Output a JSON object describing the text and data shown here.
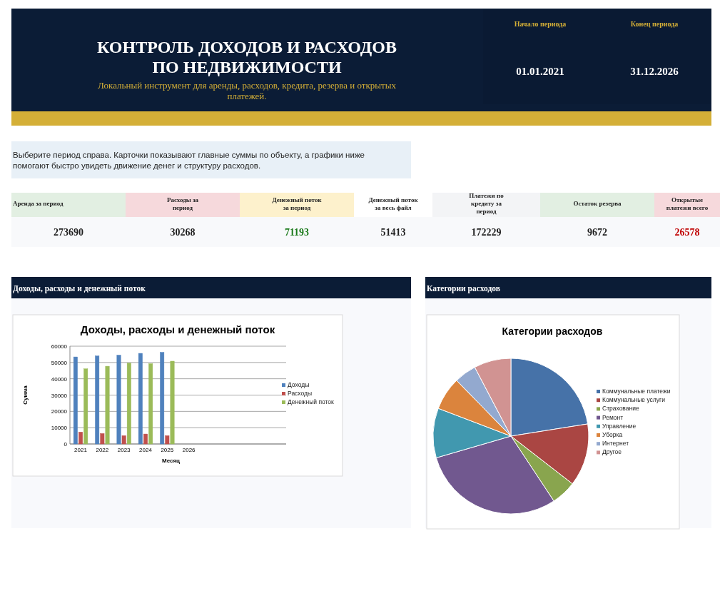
{
  "chart_data": [
    {
      "type": "other",
      "title": "КОНТРОЛЬ ДОХОДОВ И РАСХОДОВ ПО НЕДВИЖИМОСТИ",
      "subtitle": "Локальный инструмент для аренды, расходов, кредита, резерва и открытых платежей.",
      "annotations": [
        "Начало периода",
        "Конец периода",
        "01.01.2021",
        "31.12.2026",
        "Выберите период справа. Карточки показывают главные суммы по объекту, а графики ниже помогают быстро увидеть движение денег и структуру расходов."
      ],
      "categories": [
        "Аренда за период",
        "Расходы за период",
        "Денежный поток за период",
        "Денежный поток за весь файл",
        "Платежи по кредиту за период",
        "Остаток резерва",
        "Открытые платежи всего"
      ],
      "values": [
        273690,
        30268,
        71193,
        51413,
        172229,
        9672,
        26578
      ],
      "data_labels": true
    },
    {
      "type": "bar",
      "title": "Доходы, расходы и денежный поток",
      "annotations": [
        "Доходы, расходы и денежный поток"
      ],
      "xlabel": "Месяц",
      "ylabel": "Сумма",
      "categories": [
        "2021",
        "2022",
        "2023",
        "2024",
        "2025",
        "2026",
        null,
        null,
        null,
        null
      ],
      "series": [
        {
          "name": "Доходы",
          "color": "#4f81bd",
          "values": [
            53400,
            54000,
            54500,
            55600,
            56200,
            0,
            null,
            null,
            null,
            null
          ]
        },
        {
          "name": "Расходы",
          "color": "#c0504d",
          "values": [
            7300,
            6400,
            5100,
            6100,
            5100,
            0,
            null,
            null,
            null,
            null
          ]
        },
        {
          "name": "Денежный поток",
          "color": "#9bbb59",
          "values": [
            46100,
            47700,
            49600,
            49300,
            50800,
            0,
            null,
            null,
            null,
            null
          ]
        }
      ],
      "ylim": [
        0,
        60000
      ],
      "yticks": [
        0,
        10000,
        20000,
        30000,
        40000,
        50000,
        60000
      ],
      "grid": "y",
      "legend": "right"
    },
    {
      "type": "pie",
      "title": "Категории расходов",
      "annotations": [
        "Категории расходов"
      ],
      "categories": [
        "Коммунальные платежи",
        "Коммунальные услуги",
        "Страхование",
        "Ремонт",
        "Управление",
        "Уборка",
        "Интернет",
        "Другое"
      ],
      "values": [
        22.5,
        13,
        5.2,
        29.8,
        10.3,
        6.9,
        4.6,
        7.7
      ],
      "colors": [
        "#4672a8",
        "#aa4643",
        "#89a54e",
        "#71588f",
        "#4198af",
        "#db843d",
        "#93a9cf",
        "#d19392"
      ],
      "legend": "right"
    }
  ]
}
